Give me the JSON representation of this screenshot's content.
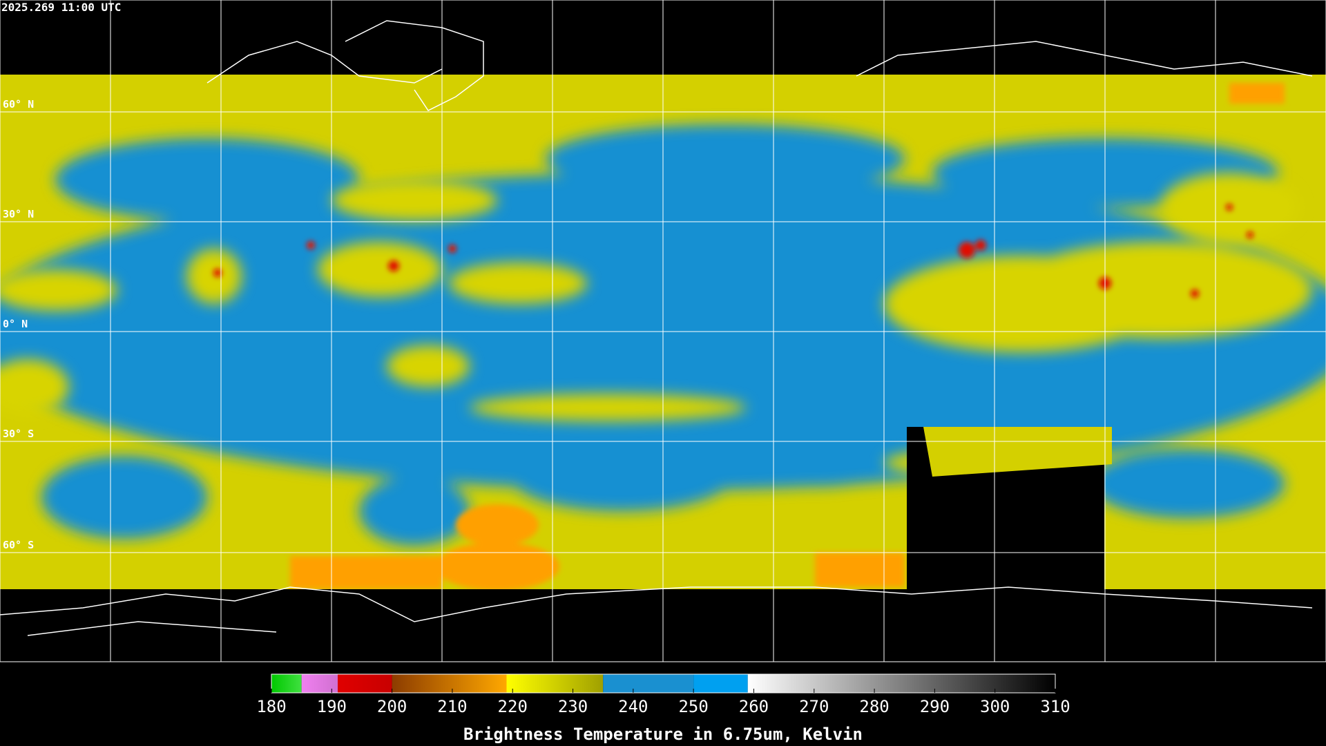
{
  "header": {
    "title": "2025.269 11:00 UTC"
  },
  "latitude_labels": [
    "60° N",
    "30° N",
    "0° N",
    "30° S",
    "60° S"
  ],
  "colorbar": {
    "label": "Brightness Temperature in 6.75um, Kelvin",
    "range": [
      180,
      310
    ],
    "ticks": [
      180,
      190,
      200,
      210,
      220,
      230,
      240,
      250,
      260,
      270,
      280,
      290,
      300,
      310
    ],
    "segments": [
      {
        "from": 180,
        "to": 185,
        "colors": [
          "#00c800",
          "#40e040"
        ]
      },
      {
        "from": 185,
        "to": 191,
        "colors": [
          "#f080f0",
          "#d070d0"
        ]
      },
      {
        "from": 191,
        "to": 200,
        "colors": [
          "#e00000",
          "#c80000"
        ]
      },
      {
        "from": 200,
        "to": 219,
        "colors": [
          "#8c3c00",
          "#ffa800"
        ]
      },
      {
        "from": 219,
        "to": 235,
        "colors": [
          "#ffff00",
          "#a0a000"
        ]
      },
      {
        "from": 235,
        "to": 250,
        "colors": [
          "#1a90d0",
          "#1a90d0"
        ]
      },
      {
        "from": 250,
        "to": 259,
        "colors": [
          "#00a0f0",
          "#00a0f0"
        ]
      },
      {
        "from": 259,
        "to": 310,
        "colors": [
          "#ffffff",
          "#000000"
        ]
      }
    ]
  }
}
